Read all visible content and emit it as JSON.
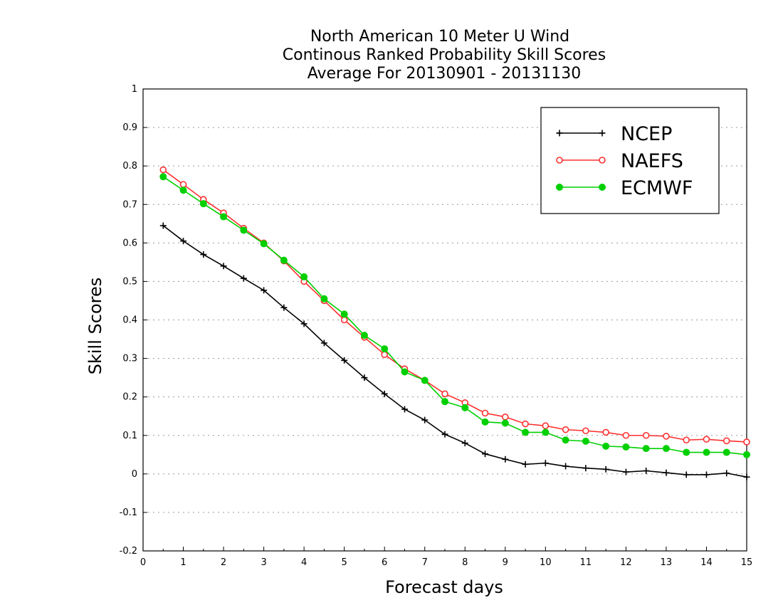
{
  "chart_data": {
    "type": "line",
    "title_lines": [
      "North American 10 Meter U Wind",
      "Continous Ranked Probability Skill Scores",
      "Average For 20130901 - 20131130"
    ],
    "xlabel": "Forecast days",
    "ylabel": "Skill Scores",
    "xlim": [
      0,
      15
    ],
    "ylim": [
      -0.2,
      1
    ],
    "x_ticks": [
      "0",
      "1",
      "2",
      "3",
      "4",
      "5",
      "6",
      "7",
      "8",
      "9",
      "10",
      "11",
      "12",
      "13",
      "14",
      "15"
    ],
    "y_ticks": [
      "-0.2",
      "-0.1",
      "0",
      "0.1",
      "0.2",
      "0.3",
      "0.4",
      "0.5",
      "0.6",
      "0.7",
      "0.8",
      "0.9",
      "1"
    ],
    "grid": "horizontal dotted",
    "legend_position": "top-right",
    "x": [
      0.5,
      1,
      1.5,
      2,
      2.5,
      3,
      3.5,
      4,
      4.5,
      5,
      5.5,
      6,
      6.5,
      7,
      7.5,
      8,
      8.5,
      9,
      9.5,
      10,
      10.5,
      11,
      11.5,
      12,
      12.5,
      13,
      13.5,
      14,
      14.5,
      15
    ],
    "series": [
      {
        "name": "NCEP",
        "color": "#000000",
        "marker": "plus",
        "values": [
          0.645,
          0.605,
          0.57,
          0.54,
          0.508,
          0.477,
          0.432,
          0.39,
          0.34,
          0.295,
          0.25,
          0.208,
          0.168,
          0.14,
          0.103,
          0.08,
          0.052,
          0.038,
          0.025,
          0.028,
          0.02,
          0.015,
          0.012,
          0.005,
          0.008,
          0.003,
          -0.002,
          -0.002,
          0.002,
          -0.008
        ]
      },
      {
        "name": "NAEFS",
        "color": "#ff3030",
        "marker": "open-circle",
        "values": [
          0.79,
          0.752,
          0.713,
          0.678,
          0.638,
          0.6,
          0.553,
          0.5,
          0.45,
          0.4,
          0.355,
          0.31,
          0.273,
          0.243,
          0.208,
          0.185,
          0.158,
          0.148,
          0.13,
          0.125,
          0.115,
          0.112,
          0.108,
          0.1,
          0.1,
          0.098,
          0.088,
          0.09,
          0.086,
          0.083
        ]
      },
      {
        "name": "ECMWF",
        "color": "#00d000",
        "marker": "filled-circle",
        "values": [
          0.772,
          0.737,
          0.702,
          0.668,
          0.633,
          0.598,
          0.555,
          0.512,
          0.455,
          0.415,
          0.36,
          0.325,
          0.265,
          0.243,
          0.188,
          0.172,
          0.135,
          0.132,
          0.108,
          0.108,
          0.088,
          0.085,
          0.072,
          0.07,
          0.066,
          0.066,
          0.056,
          0.056,
          0.056,
          0.05
        ]
      }
    ]
  }
}
